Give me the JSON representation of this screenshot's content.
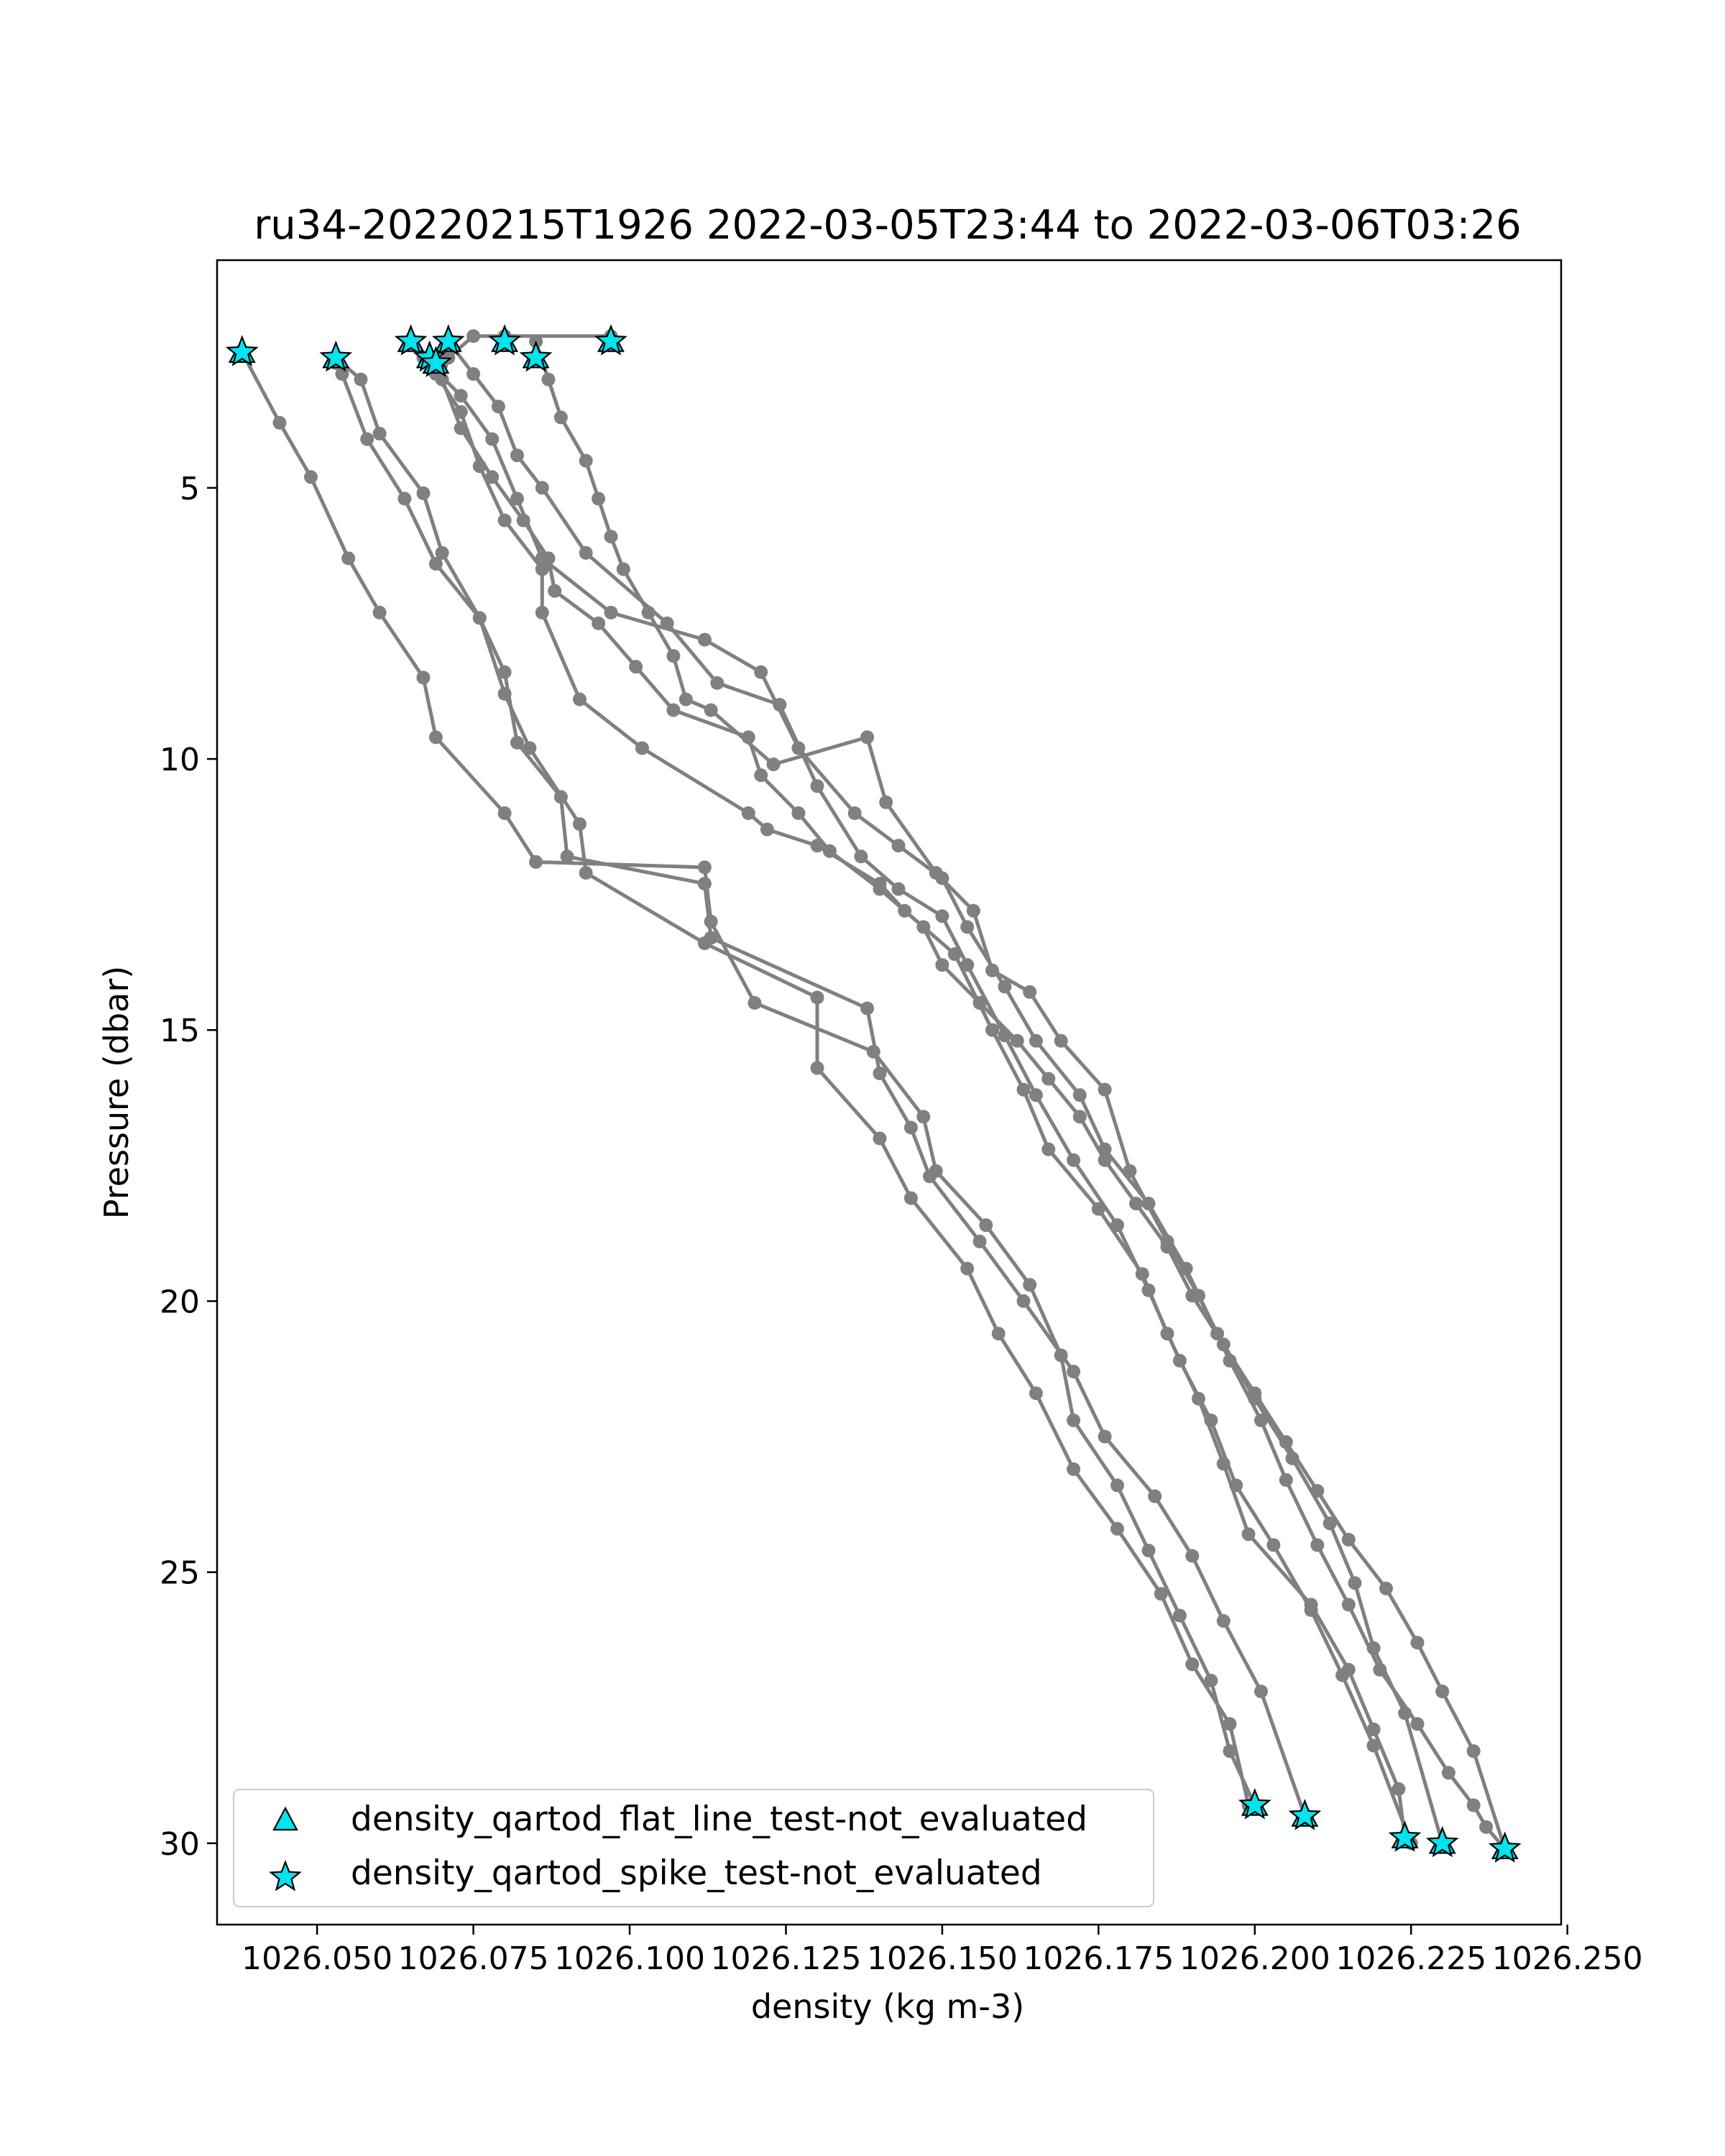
{
  "chart_data": {
    "type": "scatter",
    "title": "ru34-20220215T1926 2022-03-05T23:44 to 2022-03-06T03:26",
    "xlabel": "density (kg m-3)",
    "ylabel": "Pressure (dbar)",
    "xlim": [
      1026.034,
      1026.249
    ],
    "ylim": [
      31.5,
      0.8
    ],
    "y_inverted": true,
    "grid": false,
    "legend_position": "lower-left",
    "x_ticks": [
      "1026.050",
      "1026.075",
      "1026.100",
      "1026.125",
      "1026.150",
      "1026.175",
      "1026.200",
      "1026.225",
      "1026.250"
    ],
    "x_tick_values": [
      1026.05,
      1026.075,
      1026.1,
      1026.125,
      1026.15,
      1026.175,
      1026.2,
      1026.225,
      1026.25
    ],
    "y_ticks": [
      "5",
      "10",
      "15",
      "20",
      "25",
      "30"
    ],
    "y_tick_values": [
      5,
      10,
      15,
      20,
      25,
      30
    ],
    "colors": {
      "line": "#808080",
      "marker_fill": "#00e5ee",
      "marker_edge": "#000000"
    },
    "legend": [
      {
        "label": "density_qartod_flat_line_test-not_evaluated",
        "marker": "triangle"
      },
      {
        "label": "density_qartod_spike_test-not_evaluated",
        "marker": "star"
      }
    ],
    "profiles": [
      {
        "x": [
          1026.038,
          1026.044,
          1026.049,
          1026.055,
          1026.06,
          1026.067,
          1026.069,
          1026.08,
          1026.085,
          1026.112,
          1026.113,
          1026.12,
          1026.139,
          1026.147,
          1026.149,
          1026.157,
          1026.164,
          1026.169,
          1026.171,
          1026.178,
          1026.183,
          1026.188,
          1026.193,
          1026.196,
          1026.2
        ],
        "y": [
          2.5,
          3.8,
          4.8,
          6.3,
          7.3,
          8.5,
          9.6,
          11.0,
          11.9,
          12.0,
          13.0,
          14.5,
          15.4,
          16.6,
          17.6,
          18.6,
          19.7,
          21.0,
          22.2,
          23.4,
          24.6,
          25.8,
          27.0,
          28.3,
          29.3
        ]
      },
      {
        "x": [
          1026.053,
          1026.054,
          1026.058,
          1026.064,
          1026.069,
          1026.076,
          1026.08,
          1026.084,
          1026.092,
          1026.093,
          1026.112,
          1026.13,
          1026.13,
          1026.14,
          1026.145,
          1026.154,
          1026.159,
          1026.165,
          1026.171,
          1026.178,
          1026.185,
          1026.19,
          1026.196,
          1026.199
        ],
        "y": [
          2.7,
          2.9,
          4.1,
          5.2,
          6.4,
          7.4,
          8.8,
          9.8,
          11.2,
          12.1,
          13.4,
          14.4,
          15.7,
          17.0,
          18.1,
          19.4,
          20.6,
          21.7,
          23.1,
          24.2,
          25.4,
          26.7,
          27.8,
          29.3
        ]
      },
      {
        "x": [
          1026.053,
          1026.057,
          1026.06,
          1026.067,
          1026.07,
          1026.076,
          1026.08,
          1026.082,
          1026.089,
          1026.09,
          1026.112,
          1026.113,
          1026.138,
          1026.14,
          1026.145,
          1026.148,
          1026.156,
          1026.163,
          1026.171,
          1026.176,
          1026.184,
          1026.19,
          1026.195,
          1026.201,
          1026.208
        ],
        "y": [
          2.6,
          3.0,
          4.0,
          5.1,
          6.2,
          7.4,
          8.4,
          9.7,
          10.7,
          11.8,
          12.3,
          13.3,
          14.6,
          15.8,
          16.8,
          17.7,
          18.9,
          20.0,
          21.3,
          22.5,
          23.6,
          24.7,
          25.9,
          27.2,
          29.5
        ]
      },
      {
        "x": [
          1026.065,
          1026.069,
          1026.073,
          1026.076,
          1026.08,
          1026.086,
          1026.086,
          1026.092,
          1026.102,
          1026.119,
          1026.122,
          1026.13,
          1026.14,
          1026.144,
          1026.152,
          1026.158,
          1026.163,
          1026.167,
          1026.175,
          1026.182,
          1026.186,
          1026.191,
          1026.195,
          1026.199,
          1026.209,
          1026.215,
          1026.219,
          1026.223,
          1026.224
        ],
        "y": [
          2.3,
          2.9,
          3.6,
          4.6,
          5.6,
          6.5,
          7.3,
          8.9,
          9.8,
          11.0,
          11.3,
          11.6,
          12.3,
          12.8,
          13.6,
          15.0,
          16.1,
          17.2,
          18.3,
          19.5,
          20.6,
          21.8,
          23.0,
          24.3,
          25.6,
          26.8,
          27.9,
          29.0,
          29.9
        ]
      },
      {
        "x": [
          1026.067,
          1026.073,
          1026.078,
          1026.082,
          1026.086,
          1026.097,
          1026.112,
          1026.121,
          1026.127,
          1026.136,
          1026.143,
          1026.15,
          1026.154,
          1026.16,
          1026.165,
          1026.172,
          1026.176,
          1026.183,
          1026.189,
          1026.194,
          1026.2,
          1026.206,
          1026.212,
          1026.216,
          1026.219,
          1026.224,
          1026.23
        ],
        "y": [
          2.6,
          3.3,
          4.1,
          5.2,
          6.3,
          7.3,
          7.8,
          8.4,
          9.8,
          11.0,
          11.6,
          12.2,
          13.1,
          14.2,
          15.2,
          16.2,
          17.2,
          18.2,
          19.4,
          20.6,
          21.8,
          22.9,
          24.1,
          25.2,
          26.4,
          27.6,
          30.0
        ]
      },
      {
        "x": [
          1026.071,
          1026.075,
          1026.079,
          1026.082,
          1026.086,
          1026.093,
          1026.106,
          1026.114,
          1026.124,
          1026.13,
          1026.137,
          1026.143,
          1026.15,
          1026.154,
          1026.16,
          1026.165,
          1026.171,
          1026.178,
          1026.183,
          1026.188,
          1026.193,
          1026.197,
          1026.203,
          1026.209,
          1026.214,
          1026.219,
          1026.225
        ],
        "y": [
          2.3,
          2.9,
          3.5,
          4.4,
          5.0,
          6.2,
          7.5,
          8.6,
          9.0,
          10.5,
          11.8,
          12.4,
          12.9,
          13.8,
          15.1,
          16.2,
          17.4,
          18.6,
          19.8,
          21.1,
          22.2,
          23.4,
          24.5,
          25.7,
          26.9,
          28.2,
          30.0
        ]
      },
      {
        "x": [
          1026.085,
          1026.087,
          1026.089,
          1026.093,
          1026.095,
          1026.097,
          1026.099,
          1026.103,
          1026.107,
          1026.109,
          1026.113,
          1026.123,
          1026.138,
          1026.141,
          1026.149,
          1026.155,
          1026.158,
          1026.164,
          1026.169,
          1026.176,
          1026.18,
          1026.186,
          1026.191,
          1026.196,
          1026.201,
          1026.205,
          1026.21,
          1026.215,
          1026.22,
          1026.226,
          1026.231,
          1026.235,
          1026.237,
          1026.24
        ],
        "y": [
          2.3,
          3.0,
          3.7,
          4.5,
          5.2,
          5.9,
          6.5,
          7.3,
          8.1,
          8.9,
          9.1,
          10.1,
          9.6,
          10.8,
          12.1,
          12.8,
          13.9,
          14.3,
          15.2,
          16.1,
          17.6,
          18.9,
          19.9,
          21.1,
          22.2,
          23.3,
          24.5,
          25.6,
          26.8,
          27.8,
          28.7,
          29.3,
          29.7,
          30.1
        ]
      },
      {
        "x": [
          1026.097,
          1026.08,
          1026.075,
          1026.071,
          1026.07,
          1026.073,
          1026.078,
          1026.083,
          1026.087,
          1026.088,
          1026.095,
          1026.101,
          1026.107,
          1026.119,
          1026.121,
          1026.127,
          1026.132,
          1026.14,
          1026.147,
          1026.15,
          1026.156,
          1026.162,
          1026.167,
          1026.172,
          1026.176,
          1026.181,
          1026.186,
          1026.19,
          1026.195,
          1026.2,
          1026.205,
          1026.21,
          1026.215,
          1026.221,
          1026.226,
          1026.23,
          1026.235,
          1026.24
        ],
        "y": [
          2.2,
          2.2,
          2.2,
          2.6,
          3.0,
          3.9,
          4.8,
          5.6,
          6.3,
          6.9,
          7.5,
          8.3,
          9.1,
          9.6,
          10.3,
          11.0,
          11.7,
          12.4,
          13.1,
          13.8,
          14.5,
          15.2,
          15.9,
          16.6,
          17.4,
          18.2,
          19.0,
          19.9,
          20.8,
          21.7,
          22.6,
          23.5,
          24.4,
          25.3,
          26.3,
          27.2,
          28.3,
          30.1
        ]
      }
    ],
    "flagged_points": [
      {
        "x": 1026.038,
        "y": 2.5
      },
      {
        "x": 1026.053,
        "y": 2.6
      },
      {
        "x": 1026.065,
        "y": 2.3
      },
      {
        "x": 1026.071,
        "y": 2.3
      },
      {
        "x": 1026.068,
        "y": 2.6
      },
      {
        "x": 1026.069,
        "y": 2.7
      },
      {
        "x": 1026.08,
        "y": 2.3
      },
      {
        "x": 1026.085,
        "y": 2.6
      },
      {
        "x": 1026.097,
        "y": 2.3
      },
      {
        "x": 1026.2,
        "y": 29.3
      },
      {
        "x": 1026.208,
        "y": 29.5
      },
      {
        "x": 1026.224,
        "y": 29.9
      },
      {
        "x": 1026.23,
        "y": 30.0
      },
      {
        "x": 1026.24,
        "y": 30.1
      }
    ]
  }
}
